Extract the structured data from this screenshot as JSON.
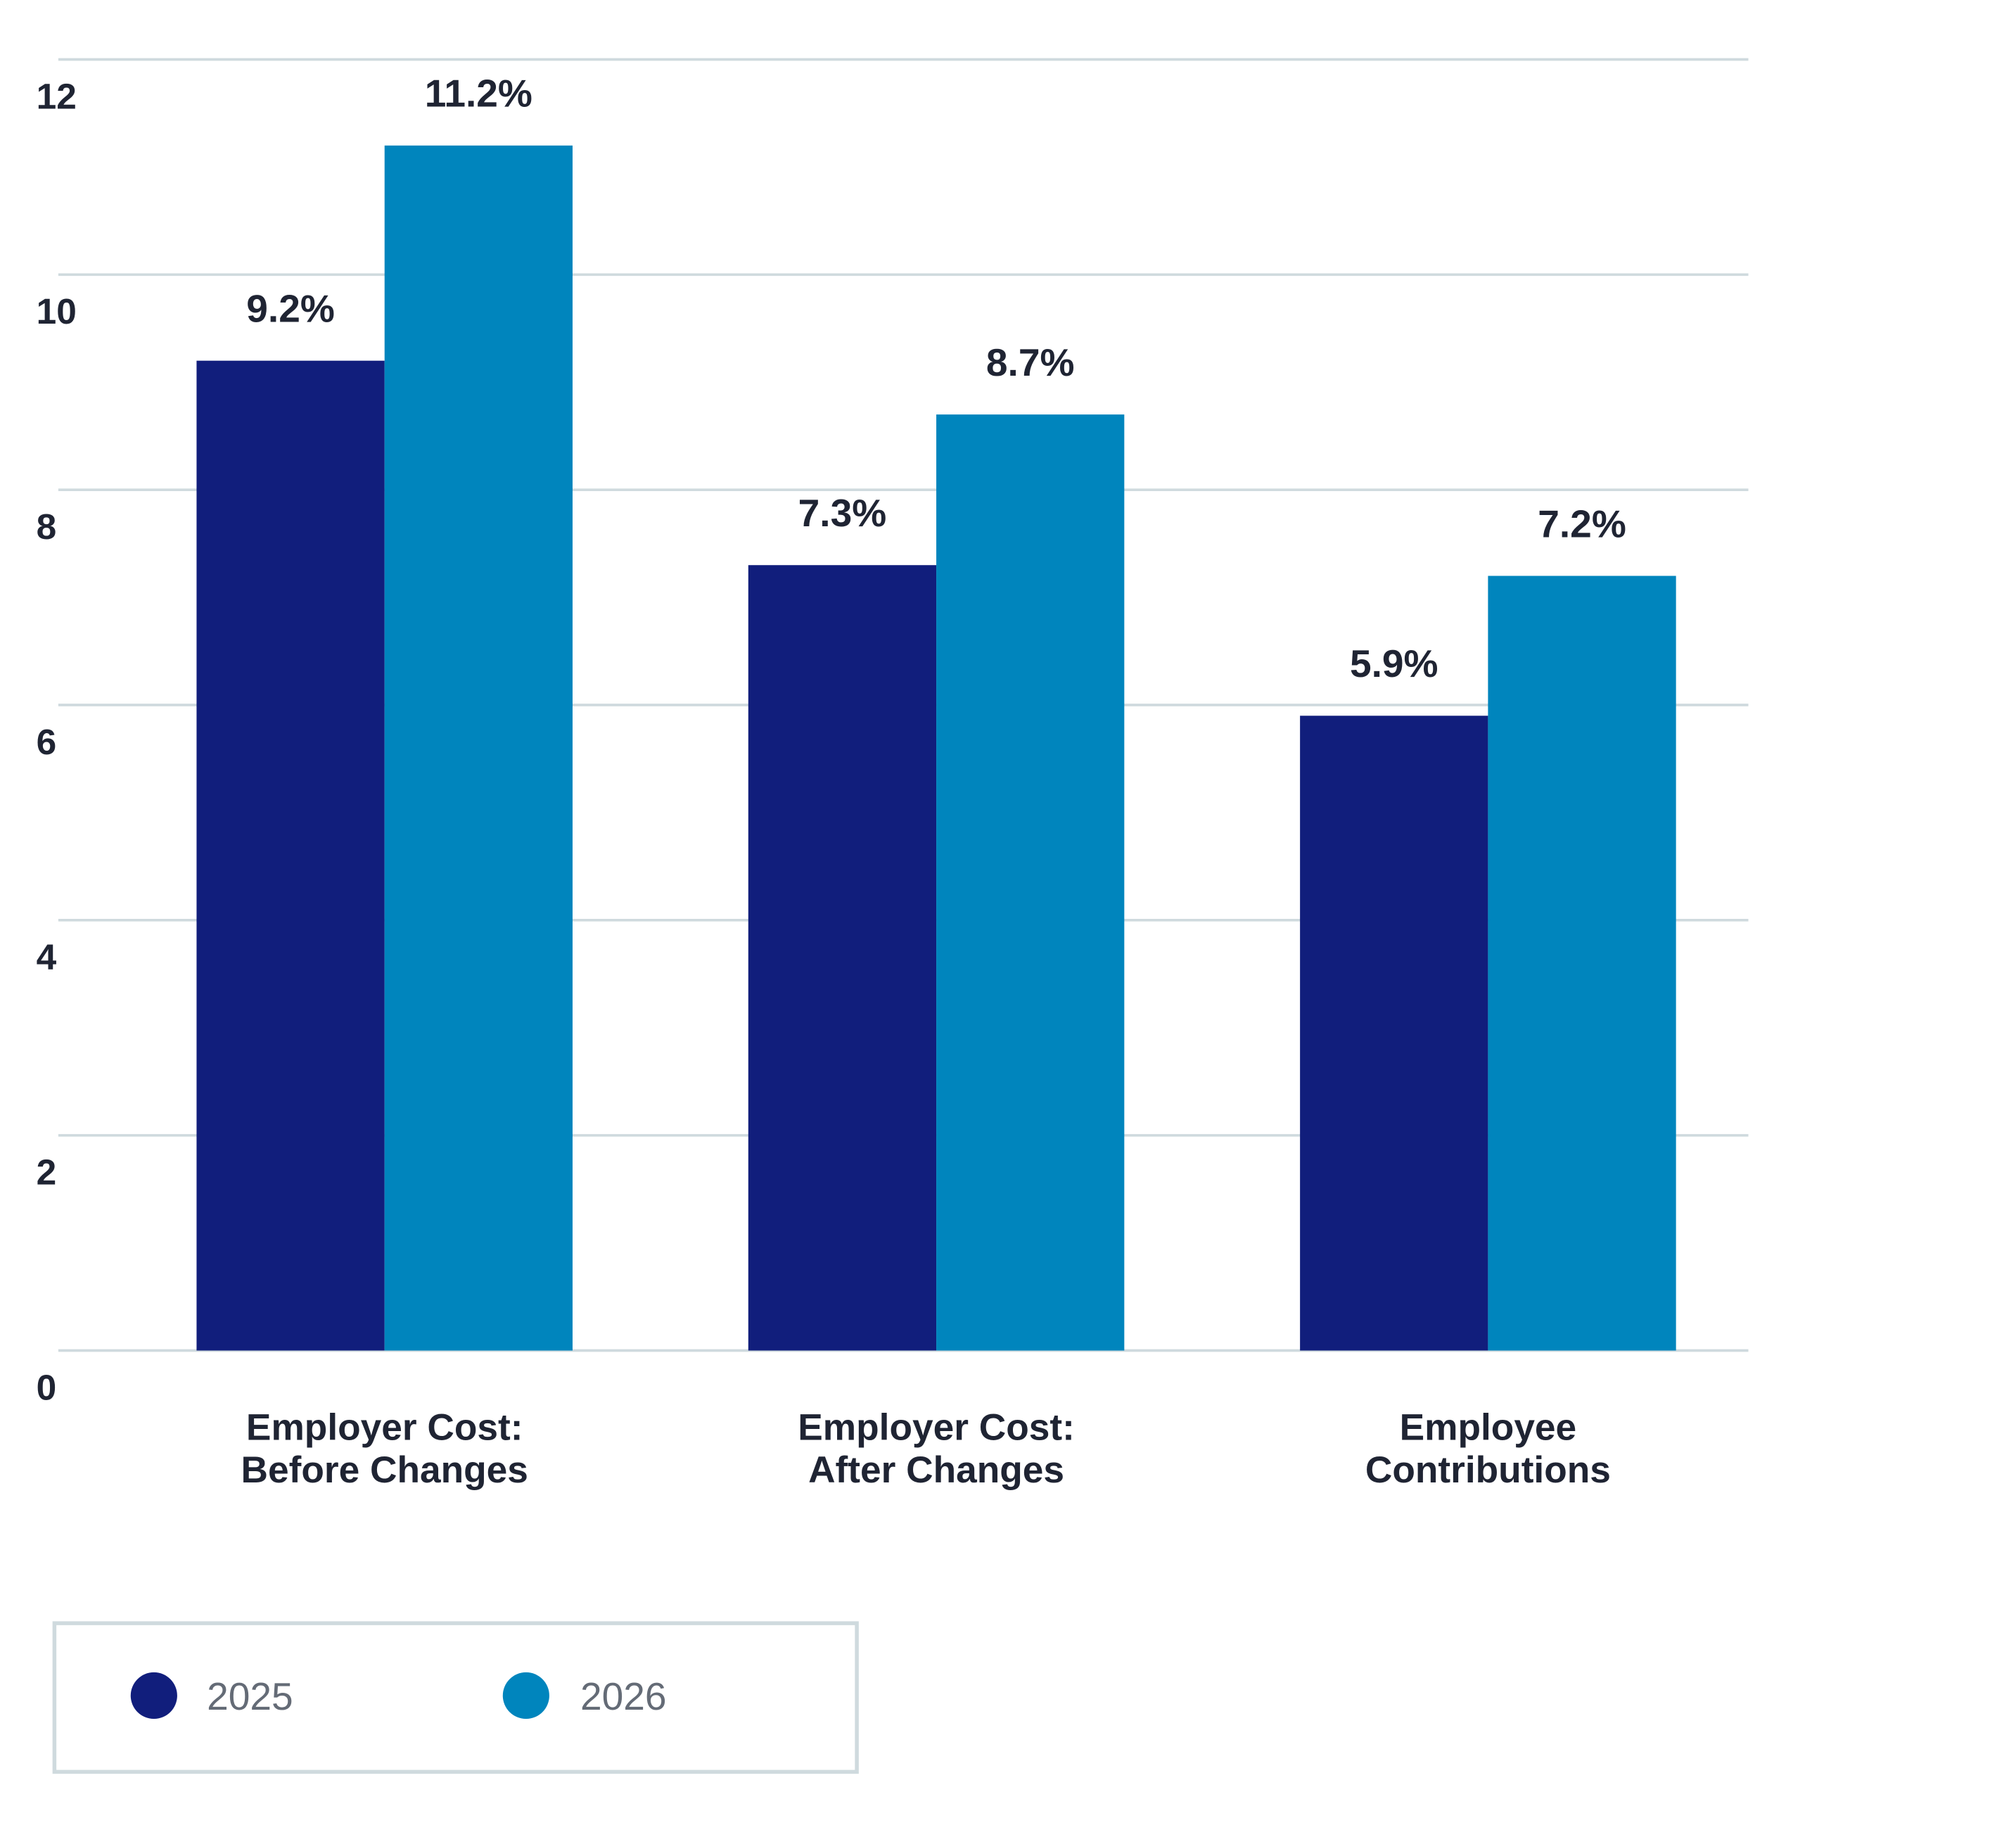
{
  "chart_data": {
    "type": "bar",
    "categories": [
      [
        "Employer Cost:",
        "Before Changes"
      ],
      [
        "Employer Cost:",
        "After Changes"
      ],
      [
        "Employee",
        "Contributions"
      ]
    ],
    "series": [
      {
        "name": "2025",
        "color": "#111E7C",
        "values": [
          9.2,
          7.3,
          5.9
        ],
        "labels": [
          "9.2%",
          "7.3%",
          "5.9%"
        ]
      },
      {
        "name": "2026",
        "color": "#0085BD",
        "values": [
          11.2,
          8.7,
          7.2
        ],
        "labels": [
          "11.2%",
          "8.7%",
          "7.2%"
        ]
      }
    ],
    "yticks": [
      0,
      2,
      4,
      6,
      8,
      10,
      12
    ],
    "ylim": [
      0,
      12
    ],
    "grid": true,
    "legend": "bottom-left",
    "title": "",
    "xlabel": "",
    "ylabel": ""
  }
}
